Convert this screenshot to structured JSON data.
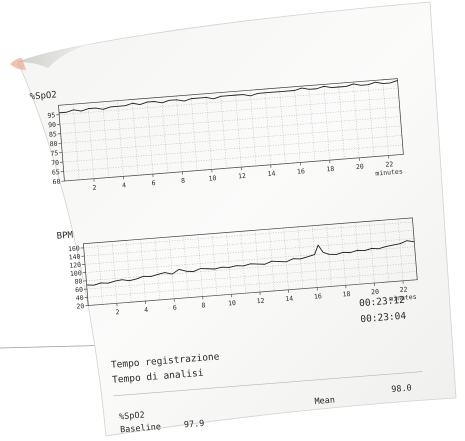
{
  "chart_data": [
    {
      "type": "line",
      "ylabel": "%SpO2",
      "xlabel": "minutes",
      "x_ticks": [
        "2",
        "4",
        "6",
        "8",
        "10",
        "12",
        "14",
        "16",
        "18",
        "20",
        "22"
      ],
      "y_ticks": [
        "95",
        "90",
        "85",
        "80",
        "75",
        "70",
        "65",
        "60"
      ],
      "xlim": [
        0,
        23
      ],
      "ylim": [
        60,
        100
      ],
      "grid": true,
      "series": [
        {
          "x": [
            0,
            0.5,
            1,
            1.5,
            2,
            2.5,
            3,
            3.5,
            4,
            4.5,
            5,
            5.5,
            6,
            6.5,
            7,
            7.5,
            8,
            8.5,
            9,
            9.5,
            10,
            10.5,
            11,
            11.5,
            12,
            12.5,
            13,
            13.5,
            14,
            14.5,
            15,
            15.5,
            16,
            16.5,
            17,
            17.5,
            18,
            18.5,
            19,
            19.5,
            20,
            20.5,
            21,
            21.5,
            22,
            22.5,
            23
          ],
          "values": [
            96,
            96,
            97,
            96,
            97,
            97,
            96,
            97,
            97,
            97,
            98,
            97,
            98,
            98,
            97,
            98,
            98,
            97,
            98,
            98,
            98,
            97,
            98,
            98,
            98,
            98,
            97,
            98,
            98,
            98,
            98,
            98,
            98,
            99,
            98,
            98,
            99,
            98,
            98,
            98,
            99,
            98,
            98,
            99,
            98,
            98,
            99
          ]
        }
      ]
    },
    {
      "type": "line",
      "ylabel": "BPM",
      "xlabel": "minutes",
      "x_ticks": [
        "2",
        "4",
        "6",
        "8",
        "10",
        "12",
        "14",
        "16",
        "18",
        "20",
        "22"
      ],
      "y_ticks": [
        "160",
        "140",
        "120",
        "100",
        "80",
        "60",
        "40",
        "20"
      ],
      "xlim": [
        0,
        23
      ],
      "ylim": [
        20,
        170
      ],
      "grid": true,
      "series": [
        {
          "x": [
            0,
            0.5,
            1,
            1.5,
            2,
            2.5,
            3,
            3.5,
            4,
            4.5,
            5,
            5.5,
            6,
            6.5,
            7,
            7.5,
            8,
            8.5,
            9,
            9.5,
            10,
            10.5,
            11,
            11.5,
            12,
            12.5,
            13,
            13.5,
            14,
            14.5,
            15,
            15.5,
            16,
            16.3,
            16.6,
            17,
            17.5,
            18,
            18.5,
            19,
            19.5,
            20,
            20.5,
            21,
            21.5,
            22,
            22.5,
            23
          ],
          "values": [
            70,
            68,
            72,
            70,
            74,
            76,
            72,
            75,
            80,
            78,
            82,
            85,
            80,
            90,
            84,
            82,
            88,
            86,
            84,
            87,
            85,
            88,
            86,
            90,
            88,
            86,
            92,
            90,
            88,
            94,
            92,
            96,
            100,
            122,
            104,
            98,
            96,
            100,
            98,
            102,
            100,
            104,
            102,
            106,
            108,
            110,
            116,
            112
          ]
        }
      ]
    }
  ],
  "summary": {
    "tempo_registrazione_label": "Tempo registrazione",
    "tempo_registrazione_value": "00:23:12",
    "tempo_analisi_label": "Tempo di analisi",
    "tempo_analisi_value": "00:23:04",
    "param_label": "%SpO2",
    "baseline_label": "Baseline",
    "baseline_value": "97.9",
    "mean_label": "Mean",
    "mean_value": "98.0"
  }
}
